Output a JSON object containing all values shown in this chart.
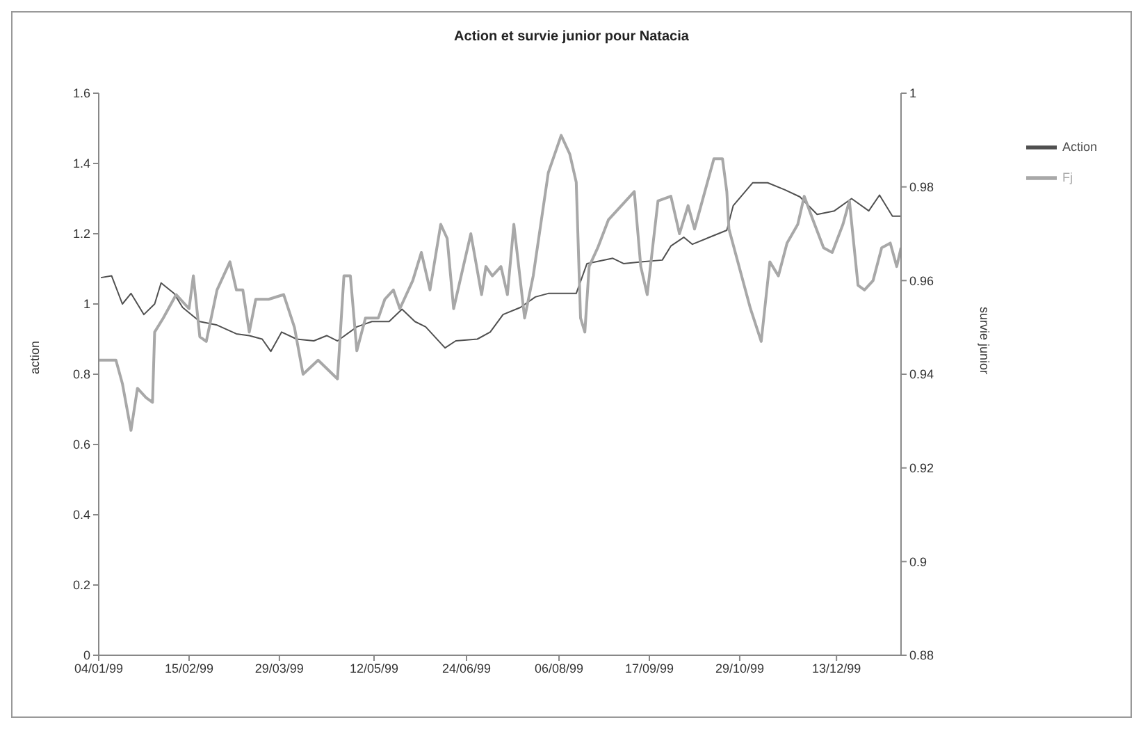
{
  "chart_data": {
    "type": "line",
    "title": "Action et survie junior pour Natacia",
    "ylabel": "action",
    "y2label": "survie junior",
    "xlim": [
      "1999-01-04",
      "2000-01-12"
    ],
    "xticks": [
      {
        "value": "1999-01-04",
        "label": "04/01/99"
      },
      {
        "value": "1999-02-15",
        "label": "15/02/99"
      },
      {
        "value": "1999-03-29",
        "label": "29/03/99"
      },
      {
        "value": "1999-05-12",
        "label": "12/05/99"
      },
      {
        "value": "1999-06-24",
        "label": "24/06/99"
      },
      {
        "value": "1999-08-06",
        "label": "06/08/99"
      },
      {
        "value": "1999-09-17",
        "label": "17/09/99"
      },
      {
        "value": "1999-10-29",
        "label": "29/10/99"
      },
      {
        "value": "1999-12-13",
        "label": "13/12/99"
      }
    ],
    "ylim": [
      0,
      1.6
    ],
    "yticks": [
      0,
      0.2,
      0.4,
      0.6,
      0.8,
      1,
      1.2,
      1.4,
      1.6
    ],
    "y2lim": [
      0.88,
      1
    ],
    "y2ticks": [
      0.88,
      0.9,
      0.92,
      0.94,
      0.96,
      0.98,
      1
    ],
    "grid": false,
    "legend": "right",
    "marker": "none",
    "line_style": "solid",
    "series": [
      {
        "name": "Action",
        "color": "#505050",
        "x": [
          "1999-01-05",
          "1999-01-10",
          "1999-01-15",
          "1999-01-19",
          "1999-01-25",
          "1999-01-30",
          "1999-02-02",
          "1999-02-08",
          "1999-02-12",
          "1999-02-20",
          "1999-02-28",
          "1999-03-09",
          "1999-03-15",
          "1999-03-21",
          "1999-03-25",
          "1999-03-30",
          "1999-04-06",
          "1999-04-14",
          "1999-04-20",
          "1999-04-25",
          "1999-05-04",
          "1999-05-11",
          "1999-05-19",
          "1999-05-25",
          "1999-05-31",
          "1999-06-05",
          "1999-06-14",
          "1999-06-19",
          "1999-06-29",
          "1999-07-05",
          "1999-07-11",
          "1999-07-19",
          "1999-07-26",
          "1999-08-01",
          "1999-08-14",
          "1999-08-19",
          "1999-08-31",
          "1999-09-05",
          "1999-09-13",
          "1999-09-23",
          "1999-09-27",
          "1999-10-03",
          "1999-10-07",
          "1999-10-15",
          "1999-10-23",
          "1999-10-26",
          "1999-11-04",
          "1999-11-11",
          "1999-11-19",
          "1999-11-26",
          "1999-12-04",
          "1999-12-12",
          "1999-12-20",
          "1999-12-28",
          "2000-01-02",
          "2000-01-08",
          "2000-01-12"
        ],
        "values": [
          1.075,
          1.08,
          1.0,
          1.03,
          0.97,
          1.0,
          1.06,
          1.03,
          0.99,
          0.95,
          0.94,
          0.915,
          0.91,
          0.9,
          0.865,
          0.92,
          0.9,
          0.895,
          0.91,
          0.895,
          0.935,
          0.95,
          0.95,
          0.985,
          0.95,
          0.935,
          0.875,
          0.895,
          0.9,
          0.92,
          0.97,
          0.99,
          1.02,
          1.03,
          1.03,
          1.115,
          1.13,
          1.115,
          1.12,
          1.125,
          1.165,
          1.19,
          1.17,
          1.19,
          1.21,
          1.28,
          1.345,
          1.345,
          1.325,
          1.305,
          1.255,
          1.265,
          1.3,
          1.265,
          1.31,
          1.25,
          1.25
        ]
      },
      {
        "name": "Fj",
        "color": "#a8a8a8",
        "axis": "y2",
        "x": [
          "1999-01-04",
          "1999-01-12",
          "1999-01-15",
          "1999-01-19",
          "1999-01-22",
          "1999-01-26",
          "1999-01-29",
          "1999-01-30",
          "1999-02-03",
          "1999-02-09",
          "1999-02-15",
          "1999-02-17",
          "1999-02-20",
          "1999-02-23",
          "1999-02-28",
          "1999-03-06",
          "1999-03-09",
          "1999-03-12",
          "1999-03-15",
          "1999-03-18",
          "1999-03-24",
          "1999-03-31",
          "1999-04-05",
          "1999-04-09",
          "1999-04-16",
          "1999-04-25",
          "1999-04-28",
          "1999-05-01",
          "1999-05-04",
          "1999-05-08",
          "1999-05-14",
          "1999-05-17",
          "1999-05-21",
          "1999-05-24",
          "1999-05-30",
          "1999-06-03",
          "1999-06-07",
          "1999-06-12",
          "1999-06-15",
          "1999-06-18",
          "1999-06-26",
          "1999-07-01",
          "1999-07-03",
          "1999-07-06",
          "1999-07-10",
          "1999-07-13",
          "1999-07-16",
          "1999-07-21",
          "1999-07-25",
          "1999-08-01",
          "1999-08-07",
          "1999-08-11",
          "1999-08-14",
          "1999-08-16",
          "1999-08-18",
          "1999-08-20",
          "1999-08-24",
          "1999-08-29",
          "1999-09-04",
          "1999-09-10",
          "1999-09-13",
          "1999-09-16",
          "1999-09-21",
          "1999-09-27",
          "1999-10-01",
          "1999-10-05",
          "1999-10-08",
          "1999-10-11",
          "1999-10-17",
          "1999-10-21",
          "1999-10-23",
          "1999-10-24",
          "1999-11-03",
          "1999-11-08",
          "1999-11-12",
          "1999-11-16",
          "1999-11-20",
          "1999-11-25",
          "1999-11-28",
          "1999-12-02",
          "1999-12-07",
          "1999-12-11",
          "1999-12-16",
          "1999-12-19",
          "1999-12-23",
          "1999-12-26",
          "1999-12-30",
          "2000-01-03",
          "2000-01-07",
          "2000-01-10",
          "2000-01-12"
        ],
        "values": [
          0.943,
          0.943,
          0.938,
          0.928,
          0.937,
          0.935,
          0.934,
          0.949,
          0.952,
          0.957,
          0.954,
          0.961,
          0.948,
          0.947,
          0.958,
          0.964,
          0.958,
          0.958,
          0.949,
          0.956,
          0.956,
          0.957,
          0.95,
          0.94,
          0.943,
          0.939,
          0.961,
          0.961,
          0.945,
          0.952,
          0.952,
          0.956,
          0.958,
          0.954,
          0.96,
          0.966,
          0.958,
          0.972,
          0.969,
          0.954,
          0.97,
          0.957,
          0.963,
          0.961,
          0.963,
          0.957,
          0.972,
          0.952,
          0.961,
          0.983,
          0.991,
          0.987,
          0.981,
          0.952,
          0.949,
          0.963,
          0.967,
          0.973,
          0.976,
          0.979,
          0.963,
          0.957,
          0.977,
          0.978,
          0.97,
          0.976,
          0.971,
          0.976,
          0.986,
          0.986,
          0.979,
          0.971,
          0.954,
          0.947,
          0.964,
          0.961,
          0.968,
          0.972,
          0.978,
          0.973,
          0.967,
          0.966,
          0.972,
          0.977,
          0.959,
          0.958,
          0.96,
          0.967,
          0.968,
          0.963,
          0.967
        ]
      }
    ]
  }
}
